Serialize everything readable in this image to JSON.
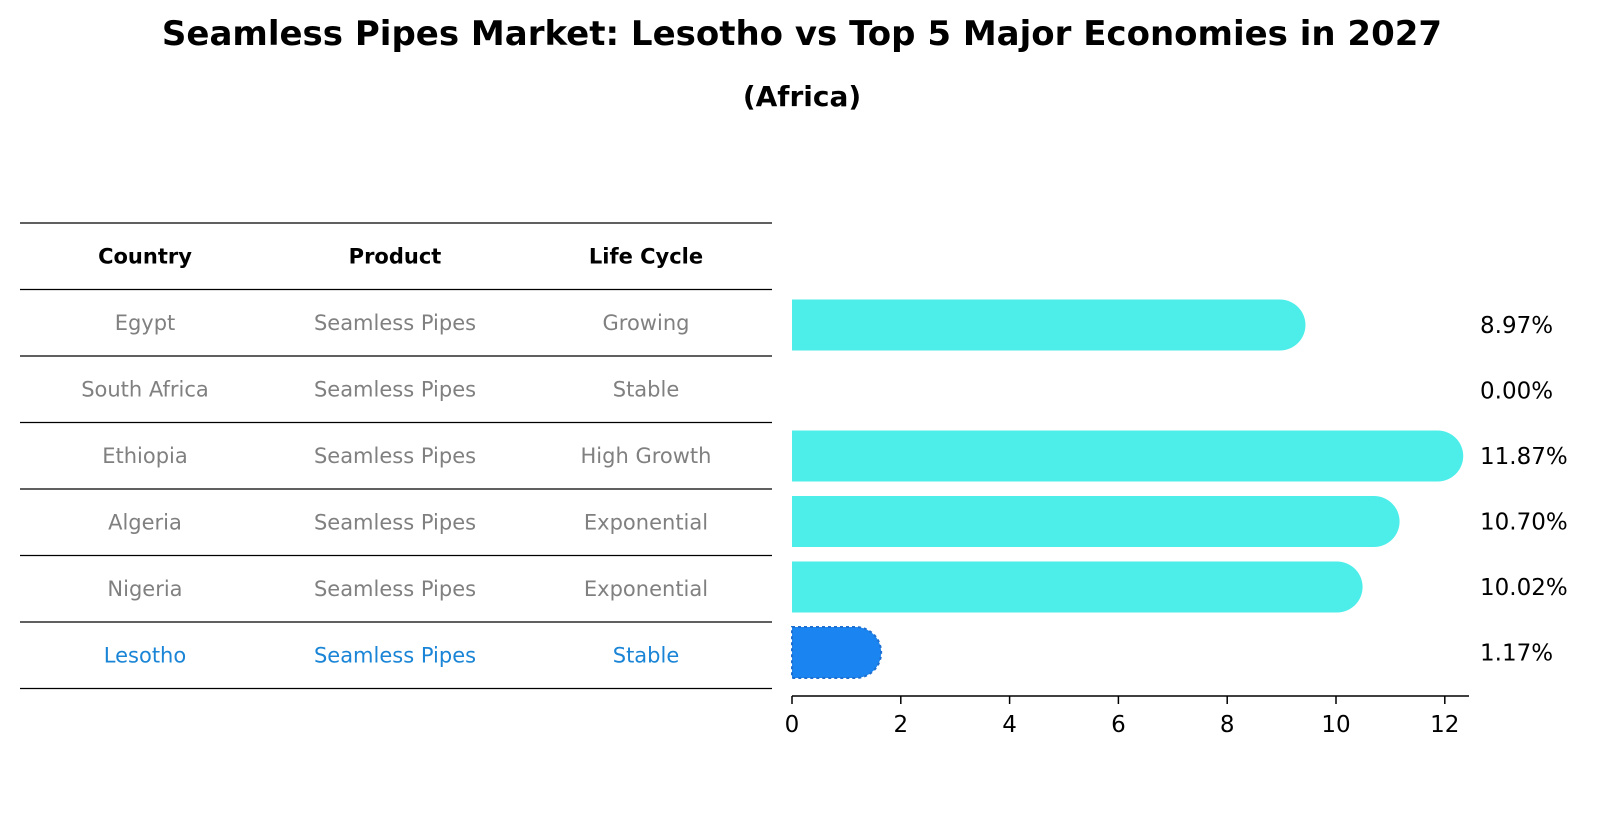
{
  "title": "Seamless Pipes Market: Lesotho vs Top 5 Major Economies in 2027",
  "subtitle": "(Africa)",
  "table": {
    "headers": [
      "Country",
      "Product",
      "Life Cycle"
    ],
    "rows": [
      {
        "country": "Egypt",
        "product": "Seamless Pipes",
        "life_cycle": "Growing",
        "highlight": false
      },
      {
        "country": "South Africa",
        "product": "Seamless Pipes",
        "life_cycle": "Stable",
        "highlight": false
      },
      {
        "country": "Ethiopia",
        "product": "Seamless Pipes",
        "life_cycle": "High Growth",
        "highlight": false
      },
      {
        "country": "Algeria",
        "product": "Seamless Pipes",
        "life_cycle": "Exponential",
        "highlight": false
      },
      {
        "country": "Nigeria",
        "product": "Seamless Pipes",
        "life_cycle": "Exponential",
        "highlight": false
      },
      {
        "country": "Lesotho",
        "product": "Seamless Pipes",
        "life_cycle": "Stable",
        "highlight": true
      }
    ]
  },
  "chart_data": {
    "type": "bar",
    "orientation": "horizontal",
    "categories": [
      "Egypt",
      "South Africa",
      "Ethiopia",
      "Algeria",
      "Nigeria",
      "Lesotho"
    ],
    "values": [
      8.97,
      0.0,
      11.87,
      10.7,
      10.02,
      1.17
    ],
    "value_labels": [
      "8.97%",
      "0.00%",
      "11.87%",
      "10.70%",
      "10.02%",
      "1.17%"
    ],
    "xlim": [
      0,
      12.5
    ],
    "xticks": [
      0,
      2,
      4,
      6,
      8,
      10,
      12
    ],
    "grid": false,
    "colors": {
      "default": "#4deeea",
      "highlight": "#1a85f0"
    }
  },
  "colors": {
    "muted_text": "#808080",
    "highlight_text": "#1a85d6",
    "header_text": "#000000"
  }
}
